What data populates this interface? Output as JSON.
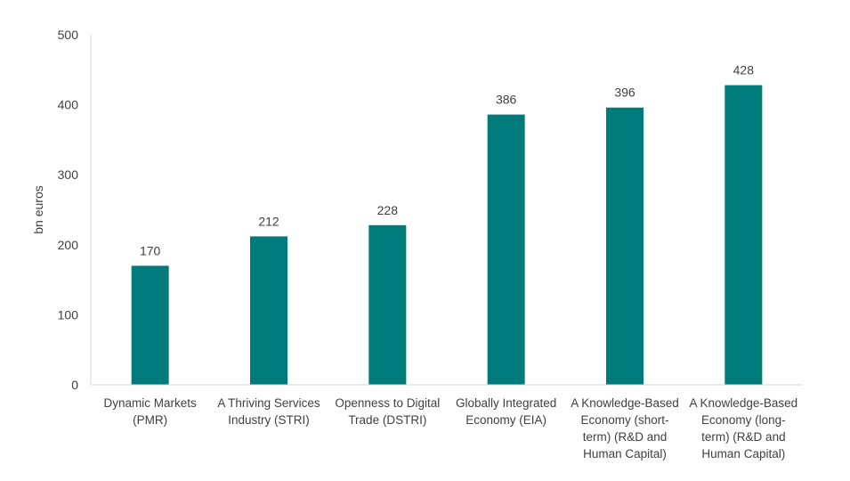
{
  "chart_data": {
    "type": "bar",
    "title": "",
    "xlabel": "",
    "ylabel": "bn euros",
    "ylim": [
      0,
      500
    ],
    "yticks": [
      0,
      100,
      200,
      300,
      400,
      500
    ],
    "grid": false,
    "legend": "none",
    "bar_color": "#007b7b",
    "categories": [
      [
        "Dynamic Markets",
        "(PMR)"
      ],
      [
        "A Thriving Services",
        "Industry (STRI)"
      ],
      [
        "Openness to Digital",
        "Trade (DSTRI)"
      ],
      [
        "Globally Integrated",
        "Economy (EIA)"
      ],
      [
        "A Knowledge-Based",
        "Economy (short-",
        "term) (R&D and",
        "Human Capital)"
      ],
      [
        "A Knowledge-Based",
        "Economy (long-",
        "term) (R&D and",
        "Human Capital)"
      ]
    ],
    "values": [
      170,
      212,
      228,
      386,
      396,
      428
    ]
  }
}
